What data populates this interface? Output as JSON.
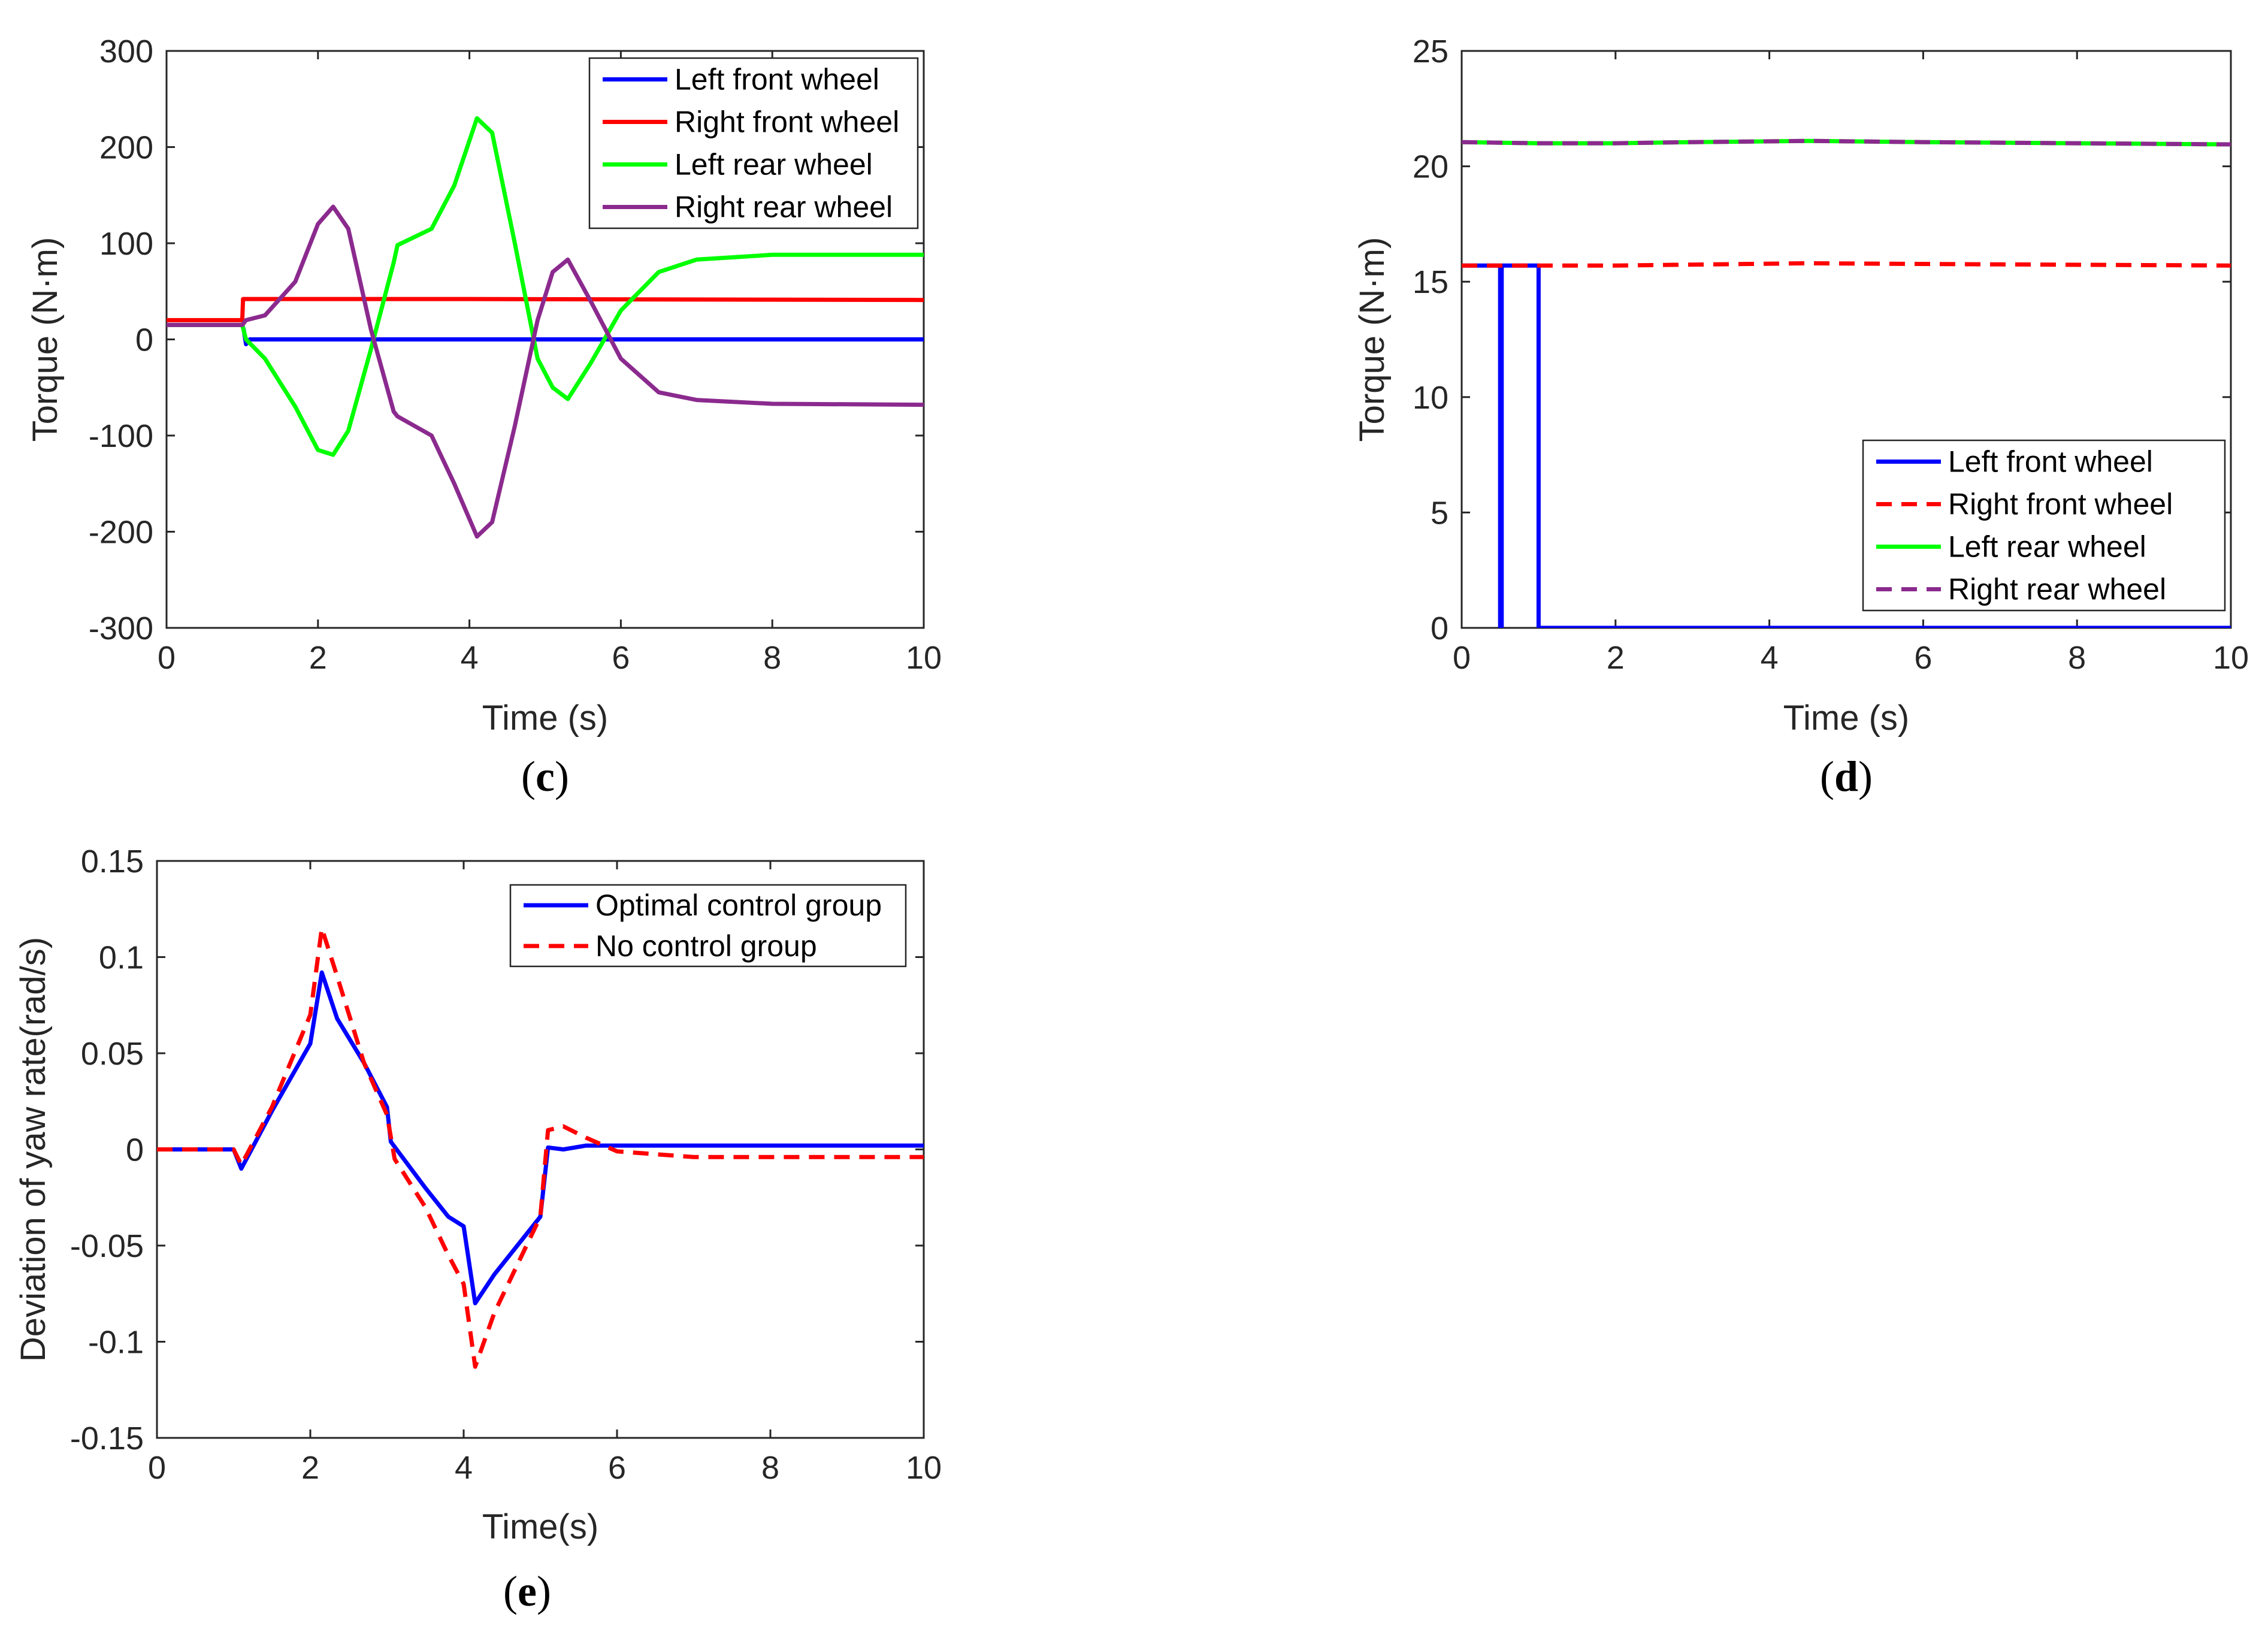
{
  "chart_data": [
    {
      "id": "c",
      "type": "line",
      "subfigure_label": "c",
      "xlabel": "Time (s)",
      "ylabel": "Torque (N·m)",
      "xlim": [
        0,
        10
      ],
      "ylim": [
        -300,
        300
      ],
      "xticks": [
        0,
        2,
        4,
        6,
        8,
        10
      ],
      "yticks": [
        -300,
        -200,
        -100,
        0,
        100,
        200,
        300
      ],
      "xtick_labels": [
        "0",
        "2",
        "4",
        "6",
        "8",
        "10"
      ],
      "ytick_labels": [
        "-300",
        "-200",
        "-100",
        "0",
        "100",
        "200",
        "300"
      ],
      "legend_position": "top-right",
      "series": [
        {
          "name": "Left front wheel",
          "color": "#0000ff",
          "dash": "solid",
          "x": [
            0,
            1,
            1.02,
            1.05,
            1.1,
            10
          ],
          "y": [
            15,
            15,
            10,
            -5,
            0,
            0
          ]
        },
        {
          "name": "Right front wheel",
          "color": "#ff0000",
          "dash": "solid",
          "x": [
            0,
            1,
            1.01,
            4,
            10
          ],
          "y": [
            20,
            20,
            42,
            42,
            41
          ]
        },
        {
          "name": "Left rear wheel",
          "color": "#00ff00",
          "dash": "solid",
          "x": [
            0,
            1,
            1.05,
            1.3,
            1.7,
            2.0,
            2.2,
            2.4,
            2.7,
            3.0,
            3.05,
            3.5,
            3.8,
            4.1,
            4.3,
            4.6,
            4.9,
            5.1,
            5.3,
            5.6,
            6.0,
            6.5,
            7,
            8,
            10
          ],
          "y": [
            15,
            15,
            0,
            -20,
            -70,
            -115,
            -120,
            -95,
            -10,
            80,
            98,
            115,
            160,
            230,
            215,
            100,
            -20,
            -50,
            -62,
            -25,
            30,
            70,
            83,
            88,
            88
          ]
        },
        {
          "name": "Right rear wheel",
          "color": "#8b2a8e",
          "dash": "solid",
          "x": [
            0,
            1,
            1.05,
            1.3,
            1.7,
            2.0,
            2.2,
            2.4,
            2.7,
            3.0,
            3.05,
            3.5,
            3.8,
            4.1,
            4.3,
            4.6,
            4.9,
            5.1,
            5.3,
            5.6,
            6.0,
            6.5,
            7,
            8,
            10
          ],
          "y": [
            15,
            15,
            20,
            25,
            60,
            120,
            138,
            115,
            10,
            -75,
            -80,
            -100,
            -150,
            -205,
            -190,
            -90,
            20,
            70,
            83,
            40,
            -20,
            -55,
            -63,
            -67,
            -68
          ]
        }
      ]
    },
    {
      "id": "d",
      "type": "line",
      "subfigure_label": "d",
      "xlabel": "Time (s)",
      "ylabel": "Torque (N·m)",
      "xlim": [
        0,
        10
      ],
      "ylim": [
        0,
        25
      ],
      "xticks": [
        0,
        2,
        4,
        6,
        8,
        10
      ],
      "yticks": [
        0,
        5,
        10,
        15,
        20,
        25
      ],
      "xtick_labels": [
        "0",
        "2",
        "4",
        "6",
        "8",
        "10"
      ],
      "ytick_labels": [
        "0",
        "5",
        "10",
        "15",
        "20",
        "25"
      ],
      "legend_position": "bottom-right",
      "series": [
        {
          "name": "Left front wheel",
          "color": "#0000ff",
          "dash": "solid",
          "x": [
            0,
            0.5,
            0.5,
            0.52,
            0.52,
            1.0,
            1.0,
            10
          ],
          "y": [
            15.7,
            15.7,
            0,
            0,
            15.7,
            15.7,
            0,
            0
          ]
        },
        {
          "name": "Right front wheel",
          "color": "#ff0000",
          "dash": "dashed",
          "x": [
            0,
            1,
            2,
            4.5,
            7,
            10
          ],
          "y": [
            15.7,
            15.7,
            15.7,
            15.8,
            15.75,
            15.7
          ]
        },
        {
          "name": "Left rear wheel",
          "color": "#00ff00",
          "dash": "solid",
          "x": [
            0,
            1,
            2,
            3,
            4.5,
            6,
            8,
            10
          ],
          "y": [
            21.05,
            21.0,
            21.0,
            21.05,
            21.1,
            21.05,
            21.0,
            20.95
          ]
        },
        {
          "name": "Right rear wheel",
          "color": "#8b2a8e",
          "dash": "dashed",
          "x": [
            0,
            1,
            2,
            3,
            4.5,
            6,
            8,
            10
          ],
          "y": [
            21.05,
            21.0,
            21.0,
            21.05,
            21.1,
            21.05,
            21.0,
            20.95
          ]
        }
      ]
    },
    {
      "id": "e",
      "type": "line",
      "subfigure_label": "e",
      "xlabel": "Time(s)",
      "ylabel": "Deviation of yaw rate(rad/s)",
      "xlim": [
        0,
        10
      ],
      "ylim": [
        -0.15,
        0.15
      ],
      "xticks": [
        0,
        2,
        4,
        6,
        8,
        10
      ],
      "yticks": [
        -0.15,
        -0.1,
        -0.05,
        0,
        0.05,
        0.1,
        0.15
      ],
      "xtick_labels": [
        "0",
        "2",
        "4",
        "6",
        "8",
        "10"
      ],
      "ytick_labels": [
        "-0.15",
        "-0.1",
        "-0.05",
        "0",
        "0.05",
        "0.1",
        "0.15"
      ],
      "legend_position": "top-right",
      "series": [
        {
          "name": "Optimal control group",
          "color": "#0000ff",
          "dash": "solid",
          "x": [
            0,
            1.0,
            1.1,
            1.5,
            2.0,
            2.15,
            2.35,
            2.7,
            3.0,
            3.05,
            3.5,
            3.8,
            4.0,
            4.15,
            4.4,
            5.0,
            5.1,
            5.3,
            5.6,
            6,
            8,
            10
          ],
          "y": [
            0,
            0,
            -0.01,
            0.02,
            0.055,
            0.092,
            0.068,
            0.045,
            0.022,
            0.004,
            -0.02,
            -0.035,
            -0.04,
            -0.08,
            -0.065,
            -0.035,
            0.001,
            0.0,
            0.002,
            0.002,
            0.002,
            0.002
          ]
        },
        {
          "name": "No control group",
          "color": "#ff0000",
          "dash": "dashed",
          "x": [
            0,
            1.0,
            1.1,
            1.5,
            2.0,
            2.15,
            2.35,
            2.7,
            3.0,
            3.1,
            3.5,
            3.8,
            4.0,
            4.15,
            4.4,
            5.0,
            5.1,
            5.3,
            5.6,
            6,
            7,
            8,
            10
          ],
          "y": [
            0,
            0,
            -0.008,
            0.022,
            0.07,
            0.115,
            0.09,
            0.045,
            0.018,
            -0.005,
            -0.03,
            -0.055,
            -0.07,
            -0.113,
            -0.085,
            -0.035,
            0.01,
            0.012,
            0.006,
            -0.001,
            -0.004,
            -0.004,
            -0.004
          ]
        }
      ]
    }
  ]
}
